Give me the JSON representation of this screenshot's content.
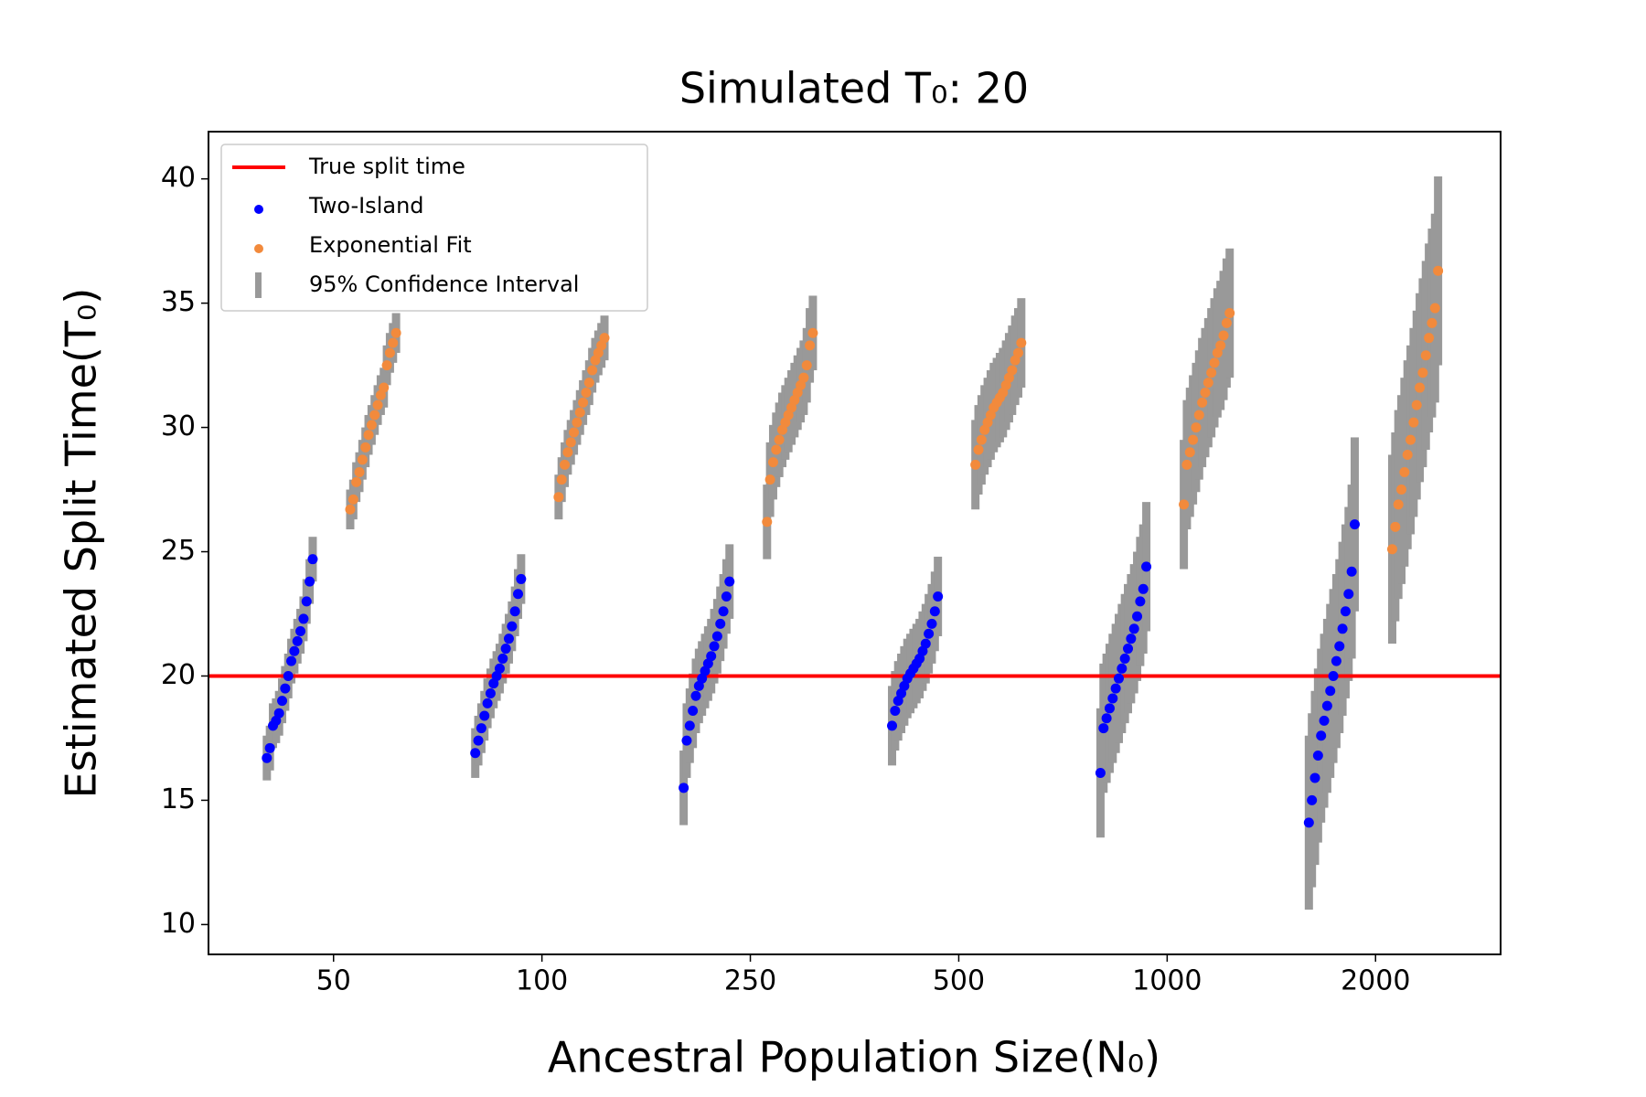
{
  "chart_data": {
    "type": "errorbar-scatter",
    "title": "Simulated T₀: 20",
    "xlabel": "Ancestral Population Size(N₀)",
    "ylabel": "Estimated Split Time(T₀)",
    "categories": [
      "50",
      "100",
      "250",
      "500",
      "1000",
      "2000"
    ],
    "ylim": [
      8.8,
      41.9
    ],
    "yticks": [
      10,
      15,
      20,
      25,
      30,
      35,
      40
    ],
    "legend": "upper left",
    "hline": {
      "name": "True split time",
      "value": 20,
      "color": "#ff0000"
    },
    "errorbar": {
      "name": "95% Confidence Interval",
      "color": "#999999"
    },
    "series": [
      {
        "name": "Two-Island",
        "color": "#0000ff",
        "values": [
          [
            16.7,
            17.1,
            18,
            18.2,
            18.5,
            19,
            19.5,
            20,
            20.6,
            21,
            21.4,
            21.8,
            22.3,
            23,
            23.8,
            24.7
          ],
          [
            16.9,
            17.4,
            17.9,
            18.4,
            18.9,
            19.3,
            19.7,
            20,
            20.3,
            20.7,
            21.1,
            21.5,
            22,
            22.6,
            23.3,
            23.9
          ],
          [
            15.5,
            17.4,
            18,
            18.6,
            19.2,
            19.6,
            19.9,
            20.2,
            20.5,
            20.8,
            21.2,
            21.6,
            22.1,
            22.6,
            23.2,
            23.8
          ],
          [
            18,
            18.6,
            19,
            19.3,
            19.6,
            19.9,
            20.1,
            20.3,
            20.5,
            20.7,
            21,
            21.3,
            21.7,
            22.1,
            22.6,
            23.2
          ],
          [
            16.1,
            17.9,
            18.3,
            18.7,
            19.1,
            19.5,
            19.9,
            20.3,
            20.7,
            21.1,
            21.5,
            21.9,
            22.4,
            23,
            23.5,
            24.4
          ],
          [
            14.1,
            15,
            15.9,
            16.8,
            17.6,
            18.2,
            18.8,
            19.4,
            20,
            20.6,
            21.2,
            21.9,
            22.6,
            23.3,
            24.2,
            26.1
          ]
        ],
        "errors": [
          [
            0.9,
            0.9,
            0.9,
            0.9,
            0.9,
            0.9,
            0.9,
            0.9,
            0.9,
            0.9,
            0.9,
            0.9,
            0.9,
            0.9,
            0.9,
            0.9
          ],
          [
            1,
            1,
            1,
            1,
            1,
            1,
            1,
            1,
            1,
            1,
            1,
            1,
            1,
            1,
            1,
            1
          ],
          [
            1.5,
            1.5,
            1.5,
            1.5,
            1.5,
            1.5,
            1.5,
            1.5,
            1.5,
            1.5,
            1.5,
            1.5,
            1.5,
            1.5,
            1.5,
            1.5
          ],
          [
            1.6,
            1.6,
            1.6,
            1.6,
            1.6,
            1.6,
            1.6,
            1.6,
            1.6,
            1.6,
            1.6,
            1.6,
            1.6,
            1.6,
            1.6,
            1.6
          ],
          [
            2.6,
            2.6,
            2.6,
            2.6,
            2.6,
            2.6,
            2.6,
            2.6,
            2.6,
            2.6,
            2.6,
            2.6,
            2.6,
            2.6,
            2.6,
            2.6
          ],
          [
            3.5,
            3.5,
            3.5,
            3.5,
            3.5,
            3.5,
            3.5,
            3.5,
            3.5,
            3.5,
            3.5,
            3.5,
            3.5,
            3.5,
            3.5,
            3.5
          ]
        ]
      },
      {
        "name": "Exponential Fit",
        "color": "#f28a3c",
        "values": [
          [
            26.7,
            27.1,
            27.8,
            28.2,
            28.7,
            29.2,
            29.7,
            30.1,
            30.5,
            30.9,
            31.3,
            31.6,
            32.5,
            33,
            33.4,
            33.8
          ],
          [
            27.2,
            27.9,
            28.5,
            29,
            29.4,
            29.8,
            30.2,
            30.6,
            31,
            31.4,
            31.8,
            32.3,
            32.7,
            33,
            33.3,
            33.6
          ],
          [
            26.2,
            27.9,
            28.6,
            29.1,
            29.5,
            29.9,
            30.2,
            30.5,
            30.8,
            31.1,
            31.4,
            31.7,
            32,
            32.5,
            33.3,
            33.8
          ],
          [
            28.5,
            29.1,
            29.5,
            29.9,
            30.2,
            30.5,
            30.8,
            31,
            31.2,
            31.4,
            31.7,
            32,
            32.3,
            32.7,
            33,
            33.4
          ],
          [
            26.9,
            28.5,
            29,
            29.5,
            30,
            30.5,
            31,
            31.4,
            31.8,
            32.2,
            32.6,
            33,
            33.3,
            33.7,
            34.2,
            34.6
          ],
          [
            25.1,
            26,
            26.9,
            27.5,
            28.2,
            28.9,
            29.5,
            30.2,
            30.9,
            31.6,
            32.2,
            32.9,
            33.6,
            34.2,
            34.8,
            36.3
          ]
        ],
        "errors": [
          [
            0.8,
            0.8,
            0.8,
            0.8,
            0.8,
            0.8,
            0.8,
            0.8,
            0.8,
            0.8,
            0.8,
            0.8,
            0.8,
            0.8,
            0.8,
            0.8
          ],
          [
            0.9,
            0.9,
            0.9,
            0.9,
            0.9,
            0.9,
            0.9,
            0.9,
            0.9,
            0.9,
            0.9,
            0.9,
            0.9,
            0.9,
            0.9,
            0.9
          ],
          [
            1.5,
            1.5,
            1.5,
            1.5,
            1.5,
            1.5,
            1.5,
            1.5,
            1.5,
            1.5,
            1.5,
            1.5,
            1.5,
            1.5,
            1.5,
            1.5
          ],
          [
            1.8,
            1.8,
            1.8,
            1.8,
            1.8,
            1.8,
            1.8,
            1.8,
            1.8,
            1.8,
            1.8,
            1.8,
            1.8,
            1.8,
            1.8,
            1.8
          ],
          [
            2.6,
            2.6,
            2.6,
            2.6,
            2.6,
            2.6,
            2.6,
            2.6,
            2.6,
            2.6,
            2.6,
            2.6,
            2.6,
            2.6,
            2.6,
            2.6
          ],
          [
            3.8,
            3.8,
            3.8,
            3.8,
            3.8,
            3.8,
            3.8,
            3.8,
            3.8,
            3.8,
            3.8,
            3.8,
            3.8,
            3.8,
            3.8,
            3.8
          ]
        ]
      }
    ]
  }
}
